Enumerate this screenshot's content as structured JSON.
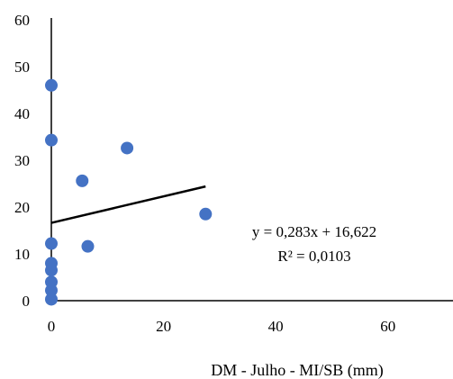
{
  "chart_data": {
    "type": "scatter",
    "title": "",
    "xlabel": "DM - Julho - MI/SB (mm)",
    "ylabel": "",
    "xlim": [
      0,
      70
    ],
    "ylim": [
      0,
      60
    ],
    "x_ticks": [
      "0",
      "20",
      "40",
      "60"
    ],
    "y_ticks": [
      "0",
      "10",
      "20",
      "30",
      "40",
      "50",
      "60"
    ],
    "grid": false,
    "legend": "none",
    "marker_color": "#4472C4",
    "trendline_color": "#000000",
    "series": [
      {
        "points": [
          {
            "x": 0,
            "y": 46
          },
          {
            "x": 0,
            "y": 34.3
          },
          {
            "x": 0,
            "y": 12.2
          },
          {
            "x": 0,
            "y": 8
          },
          {
            "x": 0,
            "y": 6.5
          },
          {
            "x": 0,
            "y": 4
          },
          {
            "x": 0,
            "y": 2.2
          },
          {
            "x": 0,
            "y": 0.3
          },
          {
            "x": 5.5,
            "y": 25.6
          },
          {
            "x": 6.5,
            "y": 11.6
          },
          {
            "x": 13.5,
            "y": 32.6
          },
          {
            "x": 27.5,
            "y": 18.5
          }
        ]
      }
    ],
    "trendline": {
      "slope": 0.283,
      "intercept": 16.622,
      "x_range": [
        0,
        27.5
      ],
      "equation_label": "y = 0,283x + 16,622",
      "r2_label": "R² = 0,0103"
    }
  }
}
